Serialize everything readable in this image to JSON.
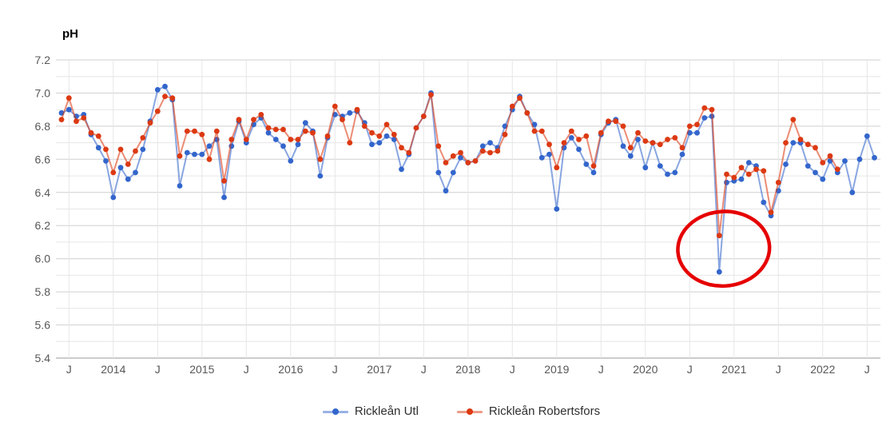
{
  "chart_data": {
    "type": "line",
    "title": "pH",
    "x_axis": {
      "unit": "month",
      "tick_labels_note": "J = July tick, year labels mark January",
      "ticks": [
        {
          "index": 1,
          "label": "J"
        },
        {
          "index": 7,
          "label": "2014"
        },
        {
          "index": 13,
          "label": "J"
        },
        {
          "index": 19,
          "label": "2015"
        },
        {
          "index": 25,
          "label": "J"
        },
        {
          "index": 31,
          "label": "2016"
        },
        {
          "index": 37,
          "label": "J"
        },
        {
          "index": 43,
          "label": "2017"
        },
        {
          "index": 49,
          "label": "J"
        },
        {
          "index": 55,
          "label": "2018"
        },
        {
          "index": 61,
          "label": "J"
        },
        {
          "index": 67,
          "label": "2019"
        },
        {
          "index": 73,
          "label": "J"
        },
        {
          "index": 79,
          "label": "2020"
        },
        {
          "index": 85,
          "label": "J"
        },
        {
          "index": 91,
          "label": "2021"
        },
        {
          "index": 97,
          "label": "J"
        },
        {
          "index": 103,
          "label": "2022"
        },
        {
          "index": 109,
          "label": "J"
        }
      ]
    },
    "y_axis": {
      "label": "pH",
      "ylim": [
        5.4,
        7.2
      ],
      "tick_labels": [
        "7.2",
        "7.0",
        "6.8",
        "6.6",
        "6.4",
        "6.2",
        "6.0",
        "5.8",
        "5.6",
        "5.4"
      ],
      "minor_grid_step": 0.1,
      "grid": true
    },
    "series": [
      {
        "name": "Rickleån Utl",
        "color": "#3366cc",
        "values": [
          6.88,
          6.9,
          6.86,
          6.87,
          6.75,
          6.67,
          6.59,
          6.37,
          6.55,
          6.48,
          6.52,
          6.66,
          6.83,
          7.02,
          7.04,
          6.96,
          6.44,
          6.64,
          6.63,
          6.63,
          6.68,
          6.72,
          6.37,
          6.68,
          6.83,
          6.7,
          6.81,
          6.85,
          6.76,
          6.72,
          6.68,
          6.59,
          6.69,
          6.82,
          6.77,
          6.5,
          6.73,
          6.87,
          6.86,
          6.88,
          6.89,
          6.82,
          6.69,
          6.7,
          6.74,
          6.72,
          6.54,
          6.63,
          6.79,
          6.86,
          7.0,
          6.52,
          6.41,
          6.52,
          6.61,
          6.58,
          6.59,
          6.68,
          6.7,
          6.67,
          6.8,
          6.9,
          6.98,
          6.88,
          6.81,
          6.61,
          6.63,
          6.3,
          6.67,
          6.73,
          6.66,
          6.57,
          6.52,
          6.75,
          6.82,
          6.84,
          6.68,
          6.62,
          6.72,
          6.55,
          6.7,
          6.56,
          6.51,
          6.52,
          6.63,
          6.76,
          6.76,
          6.85,
          6.86,
          5.92,
          6.46,
          6.47,
          6.48,
          6.58,
          6.56,
          6.34,
          6.26,
          6.41,
          6.57,
          6.7,
          6.7,
          6.56,
          6.52,
          6.48,
          6.59,
          6.52,
          6.59,
          6.4,
          6.6,
          6.74,
          6.61
        ]
      },
      {
        "name": "Rickleån Robertsfors",
        "color": "#dc3912",
        "values": [
          6.84,
          6.97,
          6.83,
          6.85,
          6.76,
          6.74,
          6.66,
          6.52,
          6.66,
          6.57,
          6.65,
          6.73,
          6.82,
          6.89,
          6.98,
          6.97,
          6.62,
          6.77,
          6.77,
          6.75,
          6.6,
          6.77,
          6.47,
          6.72,
          6.84,
          6.72,
          6.84,
          6.87,
          6.79,
          6.78,
          6.78,
          6.72,
          6.72,
          6.77,
          6.76,
          6.6,
          6.74,
          6.92,
          6.84,
          6.7,
          6.9,
          6.8,
          6.76,
          6.74,
          6.81,
          6.75,
          6.67,
          6.64,
          6.79,
          6.86,
          6.99,
          6.68,
          6.58,
          6.62,
          6.64,
          6.58,
          6.59,
          6.65,
          6.64,
          6.65,
          6.75,
          6.92,
          6.97,
          6.88,
          6.77,
          6.77,
          6.69,
          6.55,
          6.7,
          6.77,
          6.72,
          6.74,
          6.56,
          6.76,
          6.83,
          6.83,
          6.8,
          6.67,
          6.76,
          6.71,
          6.7,
          6.69,
          6.72,
          6.73,
          6.67,
          6.8,
          6.81,
          6.91,
          6.9,
          6.14,
          6.51,
          6.49,
          6.55,
          6.51,
          6.54,
          6.53,
          6.28,
          6.46,
          6.7,
          6.84,
          6.72,
          6.69,
          6.67,
          6.58,
          6.62,
          6.54,
          null,
          null,
          null,
          null,
          null
        ]
      }
    ],
    "x_start": "2013-06",
    "annotation": {
      "shape": "ellipse-highlight",
      "color": "#e60000",
      "center_month_index": 89.6,
      "center_ph": 6.06,
      "rx_months": 6.2,
      "ry_ph": 0.225,
      "rotation_deg": -4,
      "stroke_width": 4.5
    },
    "legend_position": "bottom-center"
  }
}
